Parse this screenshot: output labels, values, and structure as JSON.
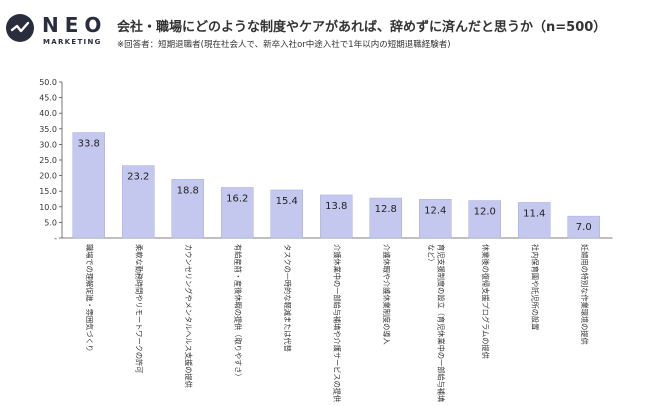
{
  "logo": {
    "word": "NEO",
    "sub": "MARKETING"
  },
  "header": {
    "title": "会社・職場にどのような制度やケアがあれば、辞めずに済んだと思うか（n=500）",
    "subtitle": "※回答者：短期退職者(現在社会人で、新卒入社or中途入社で1年以内の短期退職経験者)"
  },
  "chart_data": {
    "type": "bar",
    "categories": [
      "職場での理解促進・雰囲気づくり",
      "柔軟な勤務時間やリモートワークの許可",
      "カウンセリングやメンタルヘルス支援の提供",
      "有給産前・産後休暇の提供（取りやすさ）",
      "タスクの一時的な軽減または代替",
      "介護休業中の一部給与補填や介護サービスの提供",
      "介護休暇や介護休業制度の導入",
      "育児支援制度の設立（育児休業中の一部給与補填など）",
      "休業後の復帰支援プログラムの提供",
      "社内保育園や託児所の設置",
      "妊婦用の特別な作業環境の提供"
    ],
    "values": [
      33.8,
      23.2,
      18.8,
      16.2,
      15.4,
      13.8,
      12.8,
      12.4,
      12.0,
      11.4,
      7.0
    ],
    "value_labels": [
      "33.8",
      "23.2",
      "18.8",
      "16.2",
      "15.4",
      "13.8",
      "12.8",
      "12.4",
      "12.0",
      "11.4",
      "7.0"
    ],
    "yticks": [
      "50.0",
      "45.0",
      "40.0",
      "35.0",
      "30.0",
      "25.0",
      "20.0",
      "15.0",
      "10.0",
      "5.0",
      "-"
    ],
    "ylim": [
      0,
      50
    ],
    "grid": false,
    "bar_color": "#c5c8ee",
    "bar_border": "#a9addf"
  }
}
